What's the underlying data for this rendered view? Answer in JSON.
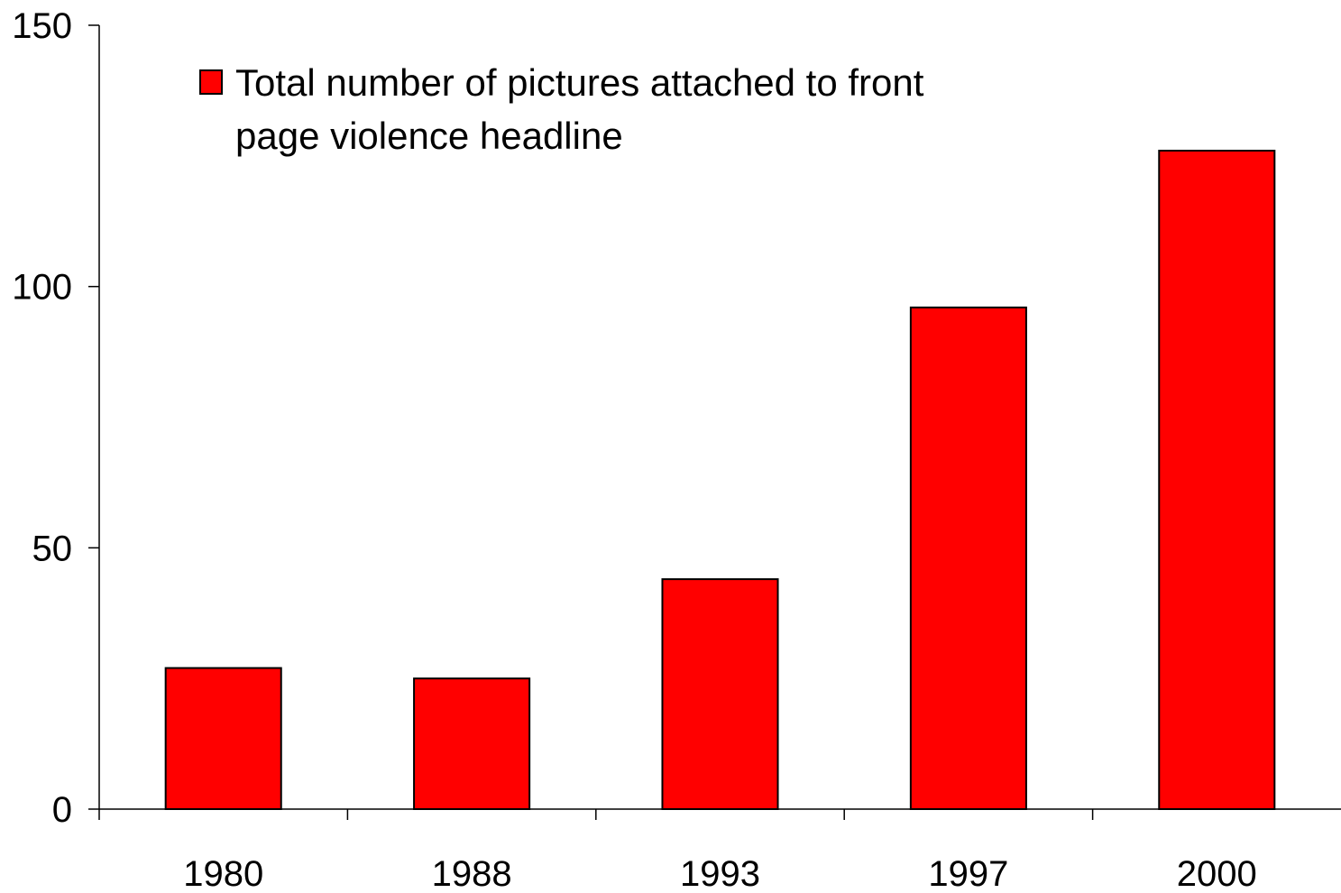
{
  "chart_data": {
    "type": "bar",
    "categories": [
      "1980",
      "1988",
      "1993",
      "1997",
      "2000"
    ],
    "series": [
      {
        "name": "Total number of pictures attached to front page violence headline",
        "name_lines": [
          "Total number of pictures attached to front",
          "page violence headline"
        ],
        "values": [
          27,
          25,
          44,
          96,
          126
        ],
        "color": "#ff0000"
      }
    ],
    "ylim": [
      0,
      150
    ],
    "yticks": [
      0,
      50,
      100,
      150
    ],
    "grid": false,
    "legend_position": "top-left",
    "title": "",
    "xlabel": "",
    "ylabel": ""
  }
}
